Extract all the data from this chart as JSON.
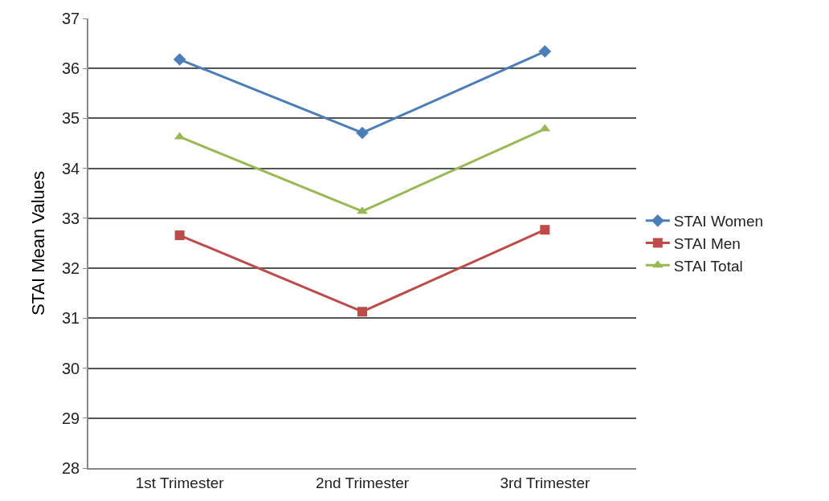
{
  "chart_data": {
    "type": "line",
    "ylabel": "STAI Mean Values",
    "categories": [
      "1st Trimester",
      "2nd Trimester",
      "3rd Trimester"
    ],
    "series": [
      {
        "name": "STAI Women",
        "color": "#4a7ebb",
        "marker": "diamond",
        "values": [
          36.18,
          34.71,
          36.34
        ]
      },
      {
        "name": "STAI Men",
        "color": "#be4b48",
        "marker": "square",
        "values": [
          32.66,
          31.13,
          32.77
        ]
      },
      {
        "name": "STAI Total",
        "color": "#98b954",
        "marker": "triangle",
        "values": [
          34.63,
          33.14,
          34.79
        ]
      }
    ],
    "ylim": [
      28,
      37
    ],
    "yticks": [
      28,
      29,
      30,
      31,
      32,
      33,
      34,
      35,
      36,
      37
    ],
    "grid": "y",
    "legend": "right",
    "line_style": "solid"
  }
}
